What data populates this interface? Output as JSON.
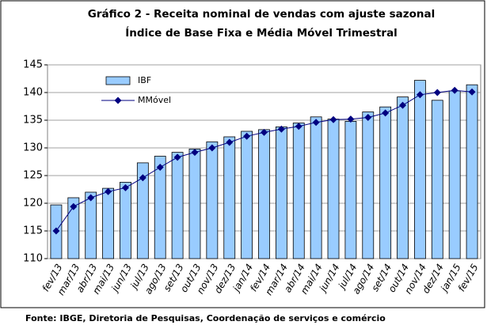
{
  "chart_data": {
    "type": "bar",
    "title": "Gráfico 2 - Receita nominal de vendas com ajuste sazonal",
    "subtitle": "Índice de Base Fixa e Média Móvel Trimestral",
    "source": "Fonte: IBGE, Diretoria de Pesquisas, Coordenação de serviços e comércio",
    "categories": [
      "fev/13",
      "mar/13",
      "abr/13",
      "mai/13",
      "jun/13",
      "jul/13",
      "ago/13",
      "set/13",
      "out/13",
      "nov/13",
      "dez/13",
      "jan/14",
      "fev/14",
      "mar/14",
      "abr/14",
      "mai/14",
      "jun/14",
      "jul/14",
      "ago/14",
      "set/14",
      "out/14",
      "nov/14",
      "dez/14",
      "jan/15",
      "fev/15"
    ],
    "series": [
      {
        "name": "IBF",
        "type": "bar",
        "color": "#99ccff",
        "values": [
          119.7,
          121.0,
          122.0,
          122.7,
          123.8,
          127.3,
          128.5,
          129.2,
          129.8,
          131.1,
          132.0,
          133.0,
          133.3,
          133.8,
          134.5,
          135.6,
          135.2,
          134.8,
          136.5,
          137.4,
          139.2,
          142.2,
          138.6,
          140.3,
          141.4
        ]
      },
      {
        "name": "MMóvel",
        "type": "line",
        "color": "#000080",
        "values": [
          115.0,
          119.4,
          121.0,
          122.1,
          122.8,
          124.6,
          126.5,
          128.3,
          129.2,
          130.0,
          131.0,
          132.1,
          132.8,
          133.4,
          133.9,
          134.6,
          135.1,
          135.2,
          135.5,
          136.3,
          137.7,
          139.6,
          140.0,
          140.4,
          140.1
        ]
      }
    ],
    "ylim": [
      110,
      145
    ],
    "yticks": [
      110,
      115,
      120,
      125,
      130,
      135,
      140,
      145
    ],
    "grid": true,
    "legend": "upper left"
  }
}
